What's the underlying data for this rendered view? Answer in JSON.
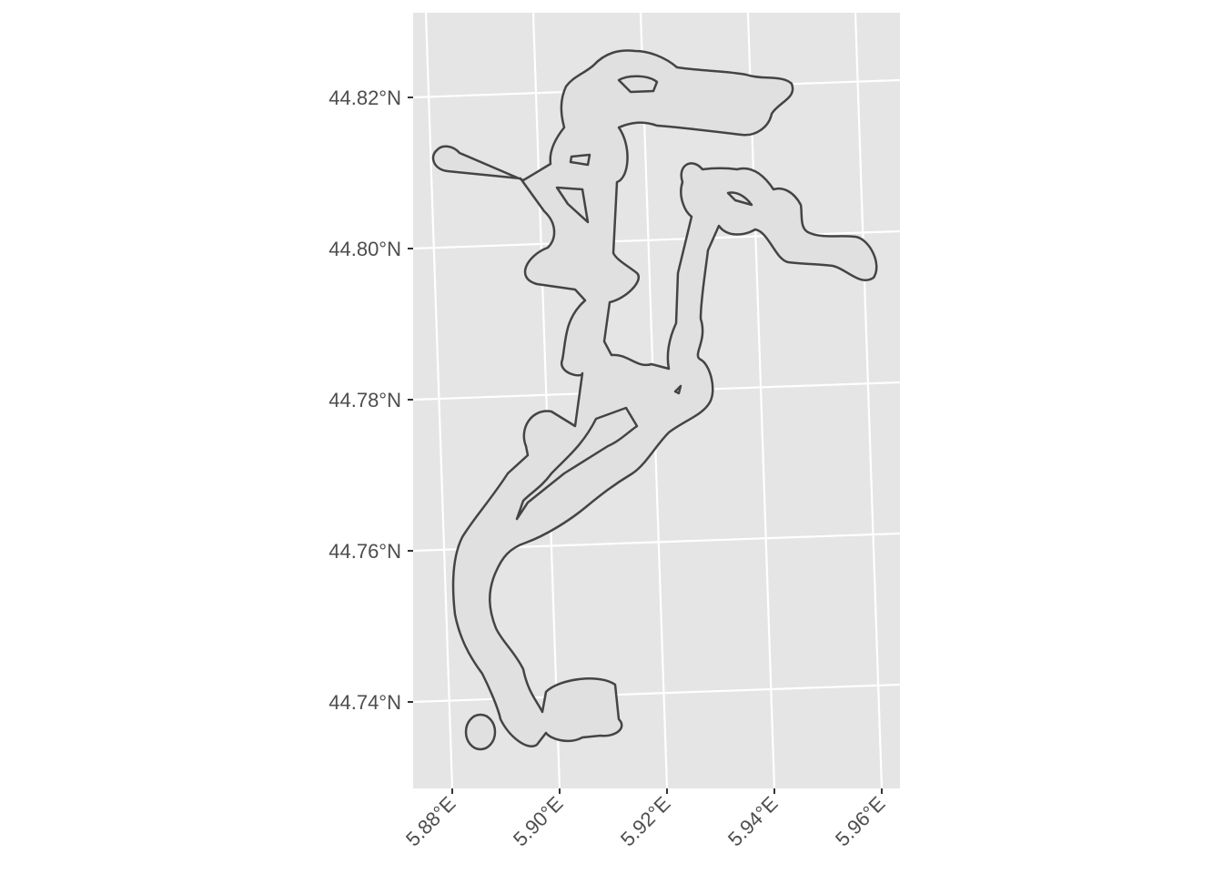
{
  "map": {
    "panel_color": "#e5e5e5",
    "grid_color": "#ffffff",
    "shape_fill": "#e0e0e0",
    "shape_stroke": "#444444",
    "y_ticks": [
      "44.82°N",
      "44.80°N",
      "44.78°N",
      "44.76°N",
      "44.74°N"
    ],
    "x_ticks": [
      "5.88°E",
      "5.90°E",
      "5.92°E",
      "5.94°E",
      "5.96°E"
    ],
    "y_range": [
      44.729,
      44.831
    ],
    "x_range": [
      5.873,
      5.963
    ],
    "projection": "graticule slightly rotated (map projection)"
  }
}
